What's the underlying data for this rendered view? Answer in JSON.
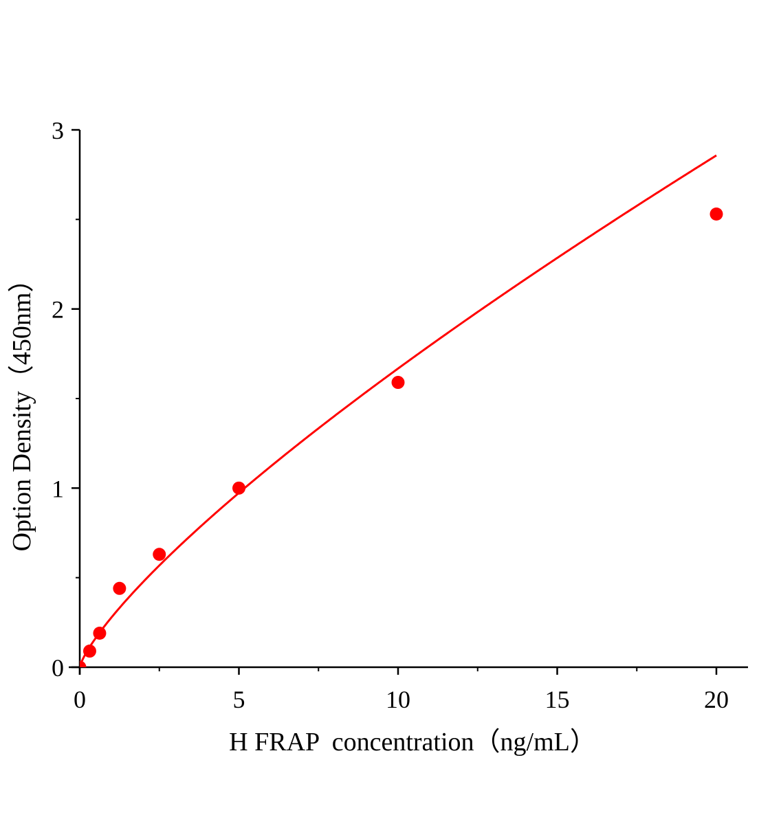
{
  "chart_data": {
    "type": "scatter",
    "title": "",
    "xlabel": "H FRAP  concentration（ng/mL）",
    "ylabel": "Option Density（450nm）",
    "xlim": [
      0,
      20
    ],
    "ylim": [
      0,
      3
    ],
    "xticks": [
      0,
      5,
      10,
      15,
      20
    ],
    "yticks": [
      0,
      1,
      2,
      3
    ],
    "grid": false,
    "legend": "none",
    "colors": {
      "points": "#ff0000",
      "curve": "#ff0000",
      "axes": "#000000"
    },
    "series": [
      {
        "x": [
          0,
          0.3125,
          0.625,
          1.25,
          2.5,
          5,
          10,
          20
        ],
        "y": [
          0,
          0.09,
          0.19,
          0.44,
          0.63,
          1.0,
          1.59,
          2.53
        ]
      }
    ],
    "fit_curve": true
  }
}
